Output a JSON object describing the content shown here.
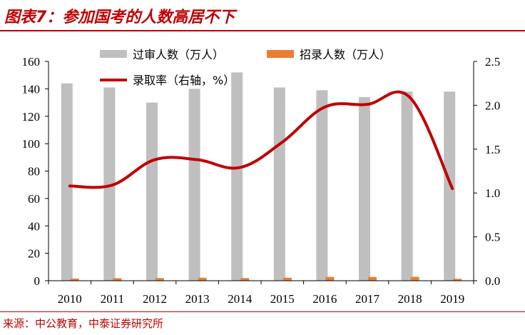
{
  "title": "图表7：参加国考的人数高居不下",
  "source": "来源：中公教育，中泰证券研究所",
  "chart_data": {
    "type": "bar",
    "categories": [
      "2010",
      "2011",
      "2012",
      "2013",
      "2014",
      "2015",
      "2016",
      "2017",
      "2018",
      "2019"
    ],
    "series": [
      {
        "name": "过审人数（万人）",
        "type": "bar",
        "axis": "left",
        "color": "#bfbfbf",
        "values": [
          144,
          141,
          130,
          140,
          152,
          141,
          139,
          134,
          138,
          138
        ]
      },
      {
        "name": "招录人数（万人）",
        "type": "bar",
        "axis": "left",
        "color": "#ed7d31",
        "values": [
          1.5,
          1.8,
          1.9,
          2.2,
          1.9,
          2.2,
          2.7,
          2.7,
          2.8,
          1.4
        ]
      },
      {
        "name": "录取率（右轴，%）",
        "type": "line",
        "axis": "right",
        "color": "#c00000",
        "values": [
          1.08,
          1.09,
          1.38,
          1.38,
          1.29,
          1.58,
          1.98,
          2.01,
          2.09,
          1.05
        ]
      }
    ],
    "y_left": {
      "min": 0,
      "max": 160,
      "ticks": [
        "0",
        "20",
        "40",
        "60",
        "80",
        "100",
        "120",
        "140",
        "160"
      ]
    },
    "y_right": {
      "min": 0,
      "max": 2.5,
      "ticks": [
        "0.0",
        "0.5",
        "1.0",
        "1.5",
        "2.0",
        "2.5"
      ]
    },
    "grid": false,
    "legend_position": "top"
  }
}
